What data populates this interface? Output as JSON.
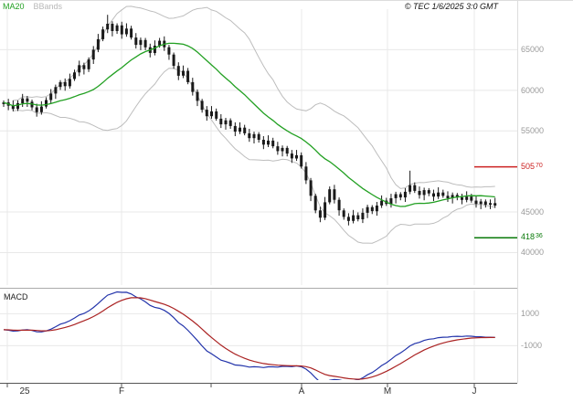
{
  "header": {
    "copyright": "© TEC 1/6/2025 3:0 GMT"
  },
  "legend": {
    "items": [
      {
        "key": "ma20",
        "label": "MA20",
        "color": "#22a022"
      },
      {
        "key": "bbands",
        "label": "BBands",
        "color": "#b8b8b8"
      }
    ]
  },
  "macd": {
    "label": "MACD"
  },
  "colors": {
    "background": "#ffffff",
    "grid": "#e8e8e8",
    "frame": "#dddddd",
    "separator": "#aaaaaa",
    "axis": "#555555",
    "axis_text": "#9a9a9a",
    "axis_text_dark": "#333333",
    "candle": "#1a1a1a",
    "ma20": "#22a022",
    "bands": "#bdbdbd",
    "macd_line": "#2233aa",
    "signal_line": "#aa2222"
  },
  "chart_data": [
    {
      "type": "candlestick",
      "panel": "price",
      "overlays": [
        "MA20",
        "BollingerBands(20,2)"
      ],
      "ylim": [
        36000,
        70000
      ],
      "y_ticks": [
        {
          "value": 65000,
          "label": "65000"
        },
        {
          "value": 60000,
          "label": "60000"
        },
        {
          "value": 55000,
          "label": "55000"
        },
        {
          "value": 45000,
          "label": "45000"
        },
        {
          "value": 40000,
          "label": "40000"
        }
      ],
      "thresholds": [
        {
          "value": 50570,
          "label": "50570",
          "color": "#cc2222"
        },
        {
          "value": 41836,
          "label": "41836",
          "color": "#0a7a0a"
        }
      ],
      "x_ticks": [
        {
          "pos": 8,
          "label": "25",
          "label_pos": 27
        },
        {
          "pos": 133,
          "label": "F"
        },
        {
          "pos": 231,
          "label": ""
        },
        {
          "pos": 330,
          "label": "A"
        },
        {
          "pos": 424,
          "label": "M"
        },
        {
          "pos": 519,
          "label": "J"
        }
      ],
      "ohlc": [
        [
          58300,
          58750,
          57950,
          58500
        ],
        [
          58500,
          58950,
          57550,
          58100
        ],
        [
          58100,
          58750,
          57400,
          57700
        ],
        [
          57700,
          58750,
          57450,
          58400
        ],
        [
          58400,
          59550,
          57950,
          59000
        ],
        [
          59000,
          59300,
          57950,
          58600
        ],
        [
          58600,
          58850,
          57550,
          57900
        ],
        [
          57900,
          58350,
          56750,
          57300
        ],
        [
          57300,
          58650,
          57000,
          58000
        ],
        [
          58000,
          59150,
          57750,
          58800
        ],
        [
          58800,
          60150,
          58350,
          59600
        ],
        [
          59600,
          60700,
          58950,
          60400
        ],
        [
          60400,
          61250,
          60050,
          61000
        ],
        [
          61000,
          61450,
          59950,
          60500
        ],
        [
          60500,
          62050,
          60200,
          61400
        ],
        [
          61400,
          62550,
          61150,
          62200
        ],
        [
          62200,
          63650,
          61750,
          63100
        ],
        [
          63100,
          63400,
          61950,
          62600
        ],
        [
          62600,
          64050,
          62250,
          63800
        ],
        [
          63800,
          65450,
          63250,
          65000
        ],
        [
          65000,
          66950,
          64700,
          66300
        ],
        [
          66300,
          67850,
          66050,
          67500
        ],
        [
          67500,
          69300,
          67050,
          68200
        ],
        [
          68200,
          68500,
          66650,
          67300
        ],
        [
          67300,
          68250,
          66950,
          68000
        ],
        [
          68000,
          68450,
          66350,
          66900
        ],
        [
          66900,
          68250,
          66600,
          67600
        ],
        [
          67600,
          67950,
          66250,
          66500
        ],
        [
          66500,
          67050,
          65150,
          65600
        ],
        [
          65600,
          66500,
          64950,
          66200
        ],
        [
          66200,
          66450,
          64950,
          65300
        ],
        [
          65300,
          65750,
          64050,
          64600
        ],
        [
          64600,
          66150,
          64300,
          65500
        ],
        [
          65500,
          66450,
          65250,
          66100
        ],
        [
          66100,
          66650,
          64850,
          65300
        ],
        [
          65300,
          65600,
          63750,
          64400
        ],
        [
          64400,
          64650,
          62650,
          63000
        ],
        [
          63000,
          63450,
          61250,
          61800
        ],
        [
          61800,
          63050,
          61500,
          62400
        ],
        [
          62400,
          62750,
          60750,
          61000
        ],
        [
          61000,
          61550,
          59350,
          59800
        ],
        [
          59800,
          60100,
          58050,
          58700
        ],
        [
          58700,
          58950,
          57250,
          57600
        ],
        [
          57600,
          58050,
          56250,
          56800
        ],
        [
          56800,
          58050,
          56500,
          57400
        ],
        [
          57400,
          57750,
          56250,
          56500
        ],
        [
          56500,
          57050,
          55350,
          55800
        ],
        [
          55800,
          56600,
          55150,
          56300
        ],
        [
          56300,
          56550,
          55250,
          55600
        ],
        [
          55600,
          56050,
          54350,
          54900
        ],
        [
          54900,
          56050,
          54600,
          55400
        ],
        [
          55400,
          55750,
          54450,
          54700
        ],
        [
          54700,
          55250,
          53650,
          54100
        ],
        [
          54100,
          54900,
          53450,
          54600
        ],
        [
          54600,
          54850,
          53550,
          53900
        ],
        [
          53900,
          54350,
          52750,
          53300
        ],
        [
          53300,
          54450,
          53000,
          53800
        ],
        [
          53800,
          54150,
          52850,
          53100
        ],
        [
          53100,
          53650,
          52050,
          52500
        ],
        [
          52500,
          53200,
          51850,
          52900
        ],
        [
          52900,
          53150,
          51850,
          52200
        ],
        [
          52200,
          52650,
          51050,
          51600
        ],
        [
          51600,
          52650,
          51300,
          52000
        ],
        [
          52000,
          52350,
          50350,
          50600
        ],
        [
          50600,
          51150,
          48450,
          48900
        ],
        [
          48900,
          49200,
          46350,
          47000
        ],
        [
          47000,
          47250,
          44850,
          45200
        ],
        [
          45200,
          45650,
          43750,
          44300
        ],
        [
          44300,
          46850,
          44000,
          46200
        ],
        [
          46200,
          48150,
          45950,
          47800
        ],
        [
          47800,
          48350,
          46050,
          46500
        ],
        [
          46500,
          46800,
          44550,
          45200
        ],
        [
          45200,
          45450,
          44050,
          44400
        ],
        [
          44400,
          44850,
          43350,
          43900
        ],
        [
          43900,
          45250,
          43600,
          44600
        ],
        [
          44600,
          44950,
          43850,
          44100
        ],
        [
          44100,
          45450,
          43650,
          44900
        ],
        [
          44900,
          45900,
          44250,
          45600
        ],
        [
          45600,
          45850,
          44750,
          45100
        ],
        [
          45100,
          46250,
          44550,
          45800
        ],
        [
          45800,
          47050,
          45500,
          46400
        ],
        [
          46400,
          46750,
          45750,
          46000
        ],
        [
          46000,
          47250,
          45550,
          46700
        ],
        [
          46700,
          47500,
          46050,
          47200
        ],
        [
          47200,
          47450,
          46450,
          46800
        ],
        [
          46800,
          47950,
          46250,
          47500
        ],
        [
          47500,
          50100,
          47200,
          48300
        ],
        [
          48300,
          48650,
          47350,
          47600
        ],
        [
          47600,
          48150,
          46650,
          47100
        ],
        [
          47100,
          48000,
          46450,
          47700
        ],
        [
          47700,
          47950,
          46950,
          47300
        ],
        [
          47300,
          47750,
          46350,
          46900
        ],
        [
          46900,
          48050,
          46600,
          47400
        ],
        [
          47400,
          47750,
          46750,
          47000
        ],
        [
          47000,
          47550,
          46250,
          46700
        ],
        [
          46700,
          47400,
          46050,
          47100
        ],
        [
          47100,
          47350,
          46450,
          46800
        ],
        [
          46800,
          47250,
          45950,
          46500
        ],
        [
          46500,
          47550,
          46200,
          46900
        ],
        [
          46900,
          47250,
          46150,
          46400
        ],
        [
          46400,
          46950,
          45550,
          46000
        ],
        [
          46000,
          46600,
          45350,
          46300
        ],
        [
          46300,
          46550,
          45550,
          45900
        ],
        [
          45900,
          46550,
          45350,
          46100
        ],
        [
          46100,
          46750,
          45500,
          45800
        ]
      ]
    },
    {
      "type": "line",
      "panel": "macd",
      "params": {
        "fast": 12,
        "slow": 26,
        "signal": 9
      },
      "ylim": [
        -3150,
        2450
      ],
      "y_ticks": [
        {
          "value": 1000,
          "label": "1000"
        },
        {
          "value": -1000,
          "label": "-1000"
        }
      ],
      "series": [
        {
          "name": "MACD",
          "color": "#2233aa"
        },
        {
          "name": "Signal",
          "color": "#aa2222"
        }
      ],
      "derived_from": "ohlc_closes"
    }
  ]
}
